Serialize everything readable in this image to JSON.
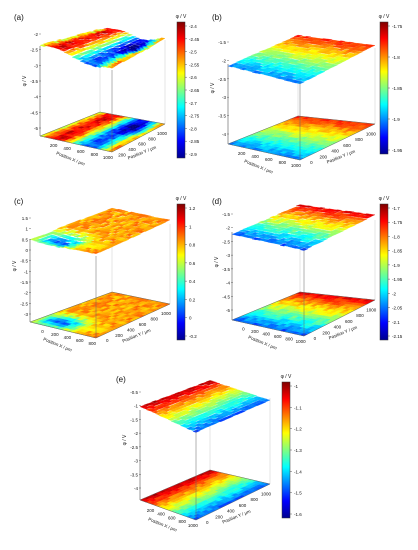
{
  "figure": {
    "panels": [
      {
        "letter": "(a)",
        "zlabel": "φ / V",
        "cbar_title": "φ / V",
        "zticks": [
          "-2",
          "-2.5",
          "-3",
          "-3.5",
          "-4",
          "-4.5",
          "-5"
        ],
        "xlabel": "Position X / μm",
        "ylabel": "Position Y / μm",
        "xticks": [
          "200",
          "400",
          "600",
          "800",
          "1000"
        ],
        "yticks": [
          "200",
          "400",
          "600",
          "800",
          "1000"
        ],
        "cbar_ticks": [
          "-2.4",
          "-2.45",
          "-2.5",
          "-2.55",
          "-2.6",
          "-2.65",
          "-2.7",
          "-2.75",
          "-2.8",
          "-2.85",
          "-2.9"
        ],
        "cbar_range": [
          -2.9,
          -2.4
        ]
      },
      {
        "letter": "(b)",
        "zlabel": "φ / V",
        "cbar_title": "φ / V",
        "zticks": [
          "-1.5",
          "-2",
          "-2.5",
          "-3",
          "-3.5",
          "-4"
        ],
        "xlabel": "Position X / μm",
        "ylabel": "Position Y / μm",
        "xticks": [
          "200",
          "400",
          "600",
          "800",
          "1000"
        ],
        "yticks": [
          "0",
          "200",
          "400",
          "600",
          "800",
          "1000"
        ],
        "cbar_ticks": [
          "-1.75",
          "-1.8",
          "-1.85",
          "-1.9",
          "-1.95"
        ],
        "cbar_range": [
          -1.98,
          -1.72
        ]
      },
      {
        "letter": "(c)",
        "zlabel": "φ / V",
        "cbar_title": "φ / V",
        "zticks": [
          "1.5",
          "1",
          "0.5",
          "0",
          "-0.5",
          "-1",
          "-1.5",
          "-2",
          "-2.5",
          "-3"
        ],
        "xlabel": "Position X / μm",
        "ylabel": "Position Y / μm",
        "xticks": [
          "0",
          "200",
          "400",
          "600",
          "800"
        ],
        "yticks": [
          "0",
          "200",
          "400",
          "600",
          "800",
          "1000"
        ],
        "cbar_ticks": [
          "1.2",
          "1",
          "0.8",
          "0.6",
          "0.4",
          "0.2",
          "0",
          "-0.2"
        ],
        "cbar_range": [
          -0.3,
          1.25
        ]
      },
      {
        "letter": "(d)",
        "zlabel": "φ / V",
        "cbar_title": "φ / V",
        "zticks": [
          "-1.5",
          "-2",
          "-2.5",
          "-3",
          "-3.5",
          "-4",
          "-4.5",
          "-5"
        ],
        "xlabel": "Position X / μm",
        "ylabel": "Position Y / μm",
        "xticks": [
          "0",
          "200",
          "400",
          "600",
          "800",
          "1000"
        ],
        "yticks": [
          "0",
          "200",
          "400",
          "600",
          "800",
          "1000"
        ],
        "cbar_ticks": [
          "-1.7",
          "-1.75",
          "-1.8",
          "-1.85",
          "-1.9",
          "-1.95",
          "-2",
          "-2.05",
          "-2.1",
          "-2.15"
        ],
        "cbar_range": [
          -2.18,
          -1.68
        ]
      },
      {
        "letter": "(e)",
        "zlabel": "φ / V",
        "cbar_title": "φ / V",
        "zticks": [
          "-0.5",
          "-1",
          "-1.5",
          "-2",
          "-2.5",
          "-3",
          "-3.5",
          "-4"
        ],
        "xlabel": "Position X / μm",
        "ylabel": "Position Y / μm",
        "xticks": [
          "200",
          "400",
          "600",
          "800",
          "1000"
        ],
        "yticks": [
          "0",
          "200",
          "400",
          "600",
          "800",
          "1000"
        ],
        "cbar_ticks": [
          "-1",
          "-1.1",
          "-1.2",
          "-1.3",
          "-1.4",
          "-1.5",
          "-1.6"
        ],
        "cbar_range": [
          -1.65,
          -0.95
        ]
      }
    ]
  },
  "chart_data": [
    {
      "type": "heatmap",
      "panel": "(a)",
      "surface": "3d-surface-with-projected-map",
      "x_range": [
        0,
        1000
      ],
      "y_range": [
        0,
        1000
      ],
      "zlim": [
        -5,
        -2
      ],
      "clim": [
        -2.9,
        -2.4
      ],
      "colormap": "jet",
      "grid": true,
      "colorbar": "right"
    },
    {
      "type": "heatmap",
      "panel": "(b)",
      "surface": "3d-surface-with-projected-map",
      "x_range": [
        0,
        1000
      ],
      "y_range": [
        0,
        1000
      ],
      "zlim": [
        -4,
        -1.5
      ],
      "clim": [
        -1.98,
        -1.72
      ],
      "colormap": "jet",
      "grid": true,
      "colorbar": "right"
    },
    {
      "type": "heatmap",
      "panel": "(c)",
      "surface": "3d-surface-with-projected-map",
      "x_range": [
        0,
        1000
      ],
      "y_range": [
        0,
        1000
      ],
      "zlim": [
        -3,
        1.5
      ],
      "clim": [
        -0.3,
        1.25
      ],
      "colormap": "jet",
      "grid": true,
      "colorbar": "right"
    },
    {
      "type": "heatmap",
      "panel": "(d)",
      "surface": "3d-surface-with-projected-map",
      "x_range": [
        0,
        1000
      ],
      "y_range": [
        0,
        1000
      ],
      "zlim": [
        -5,
        -1.5
      ],
      "clim": [
        -2.18,
        -1.68
      ],
      "colormap": "jet",
      "grid": true,
      "colorbar": "right"
    },
    {
      "type": "heatmap",
      "panel": "(e)",
      "surface": "3d-surface-with-projected-map",
      "x_range": [
        0,
        1000
      ],
      "y_range": [
        0,
        1000
      ],
      "zlim": [
        -4,
        -0.5
      ],
      "clim": [
        -1.65,
        -0.95
      ],
      "colormap": "jet",
      "grid": true,
      "colorbar": "right"
    }
  ]
}
